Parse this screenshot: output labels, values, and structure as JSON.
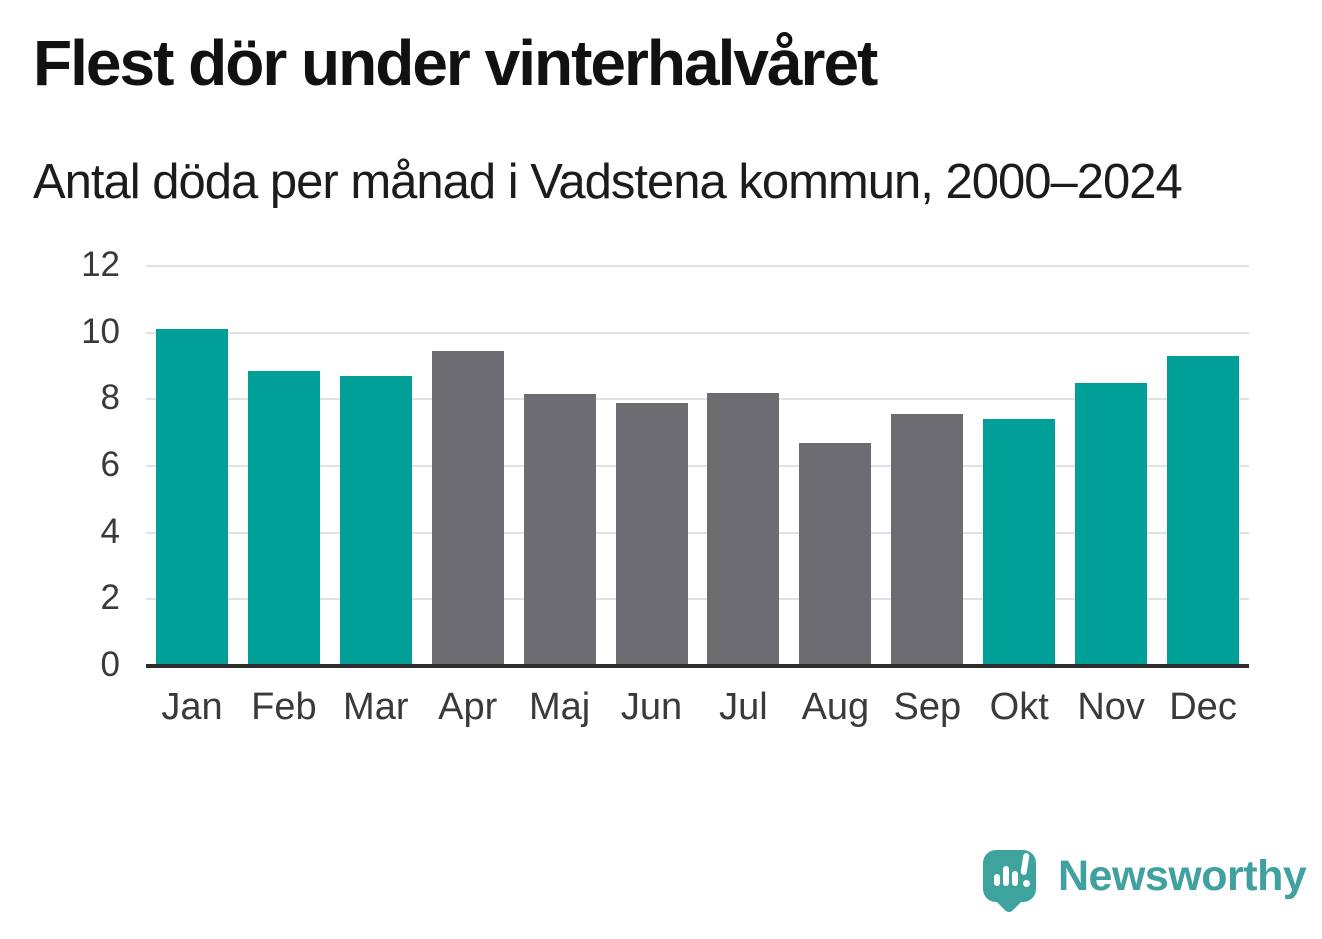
{
  "chart_data": {
    "type": "bar",
    "title": "Flest dör under vinterhalvåret",
    "subtitle": "Antal döda per månad i Vadstena kommun, 2000–2024",
    "categories": [
      "Jan",
      "Feb",
      "Mar",
      "Apr",
      "Maj",
      "Jun",
      "Jul",
      "Aug",
      "Sep",
      "Okt",
      "Nov",
      "Dec"
    ],
    "values": [
      10.1,
      8.85,
      8.7,
      9.45,
      8.15,
      7.9,
      8.2,
      6.7,
      7.55,
      7.4,
      8.5,
      9.3
    ],
    "bar_color_keys": [
      "winter",
      "winter",
      "winter",
      "summer",
      "summer",
      "summer",
      "summer",
      "summer",
      "summer",
      "winter",
      "winter",
      "winter"
    ],
    "colors": {
      "winter": "#00a099",
      "summer": "#6c6c71"
    },
    "xlabel": "",
    "ylabel": "",
    "ylim": [
      0,
      12
    ],
    "yticks": [
      0,
      2,
      4,
      6,
      8,
      10,
      12
    ],
    "grid": true,
    "legend": "none",
    "gridline_color": "#e2e2e2",
    "axis_color": "#2d2d2d"
  },
  "footer": {
    "brand": "Newsworthy",
    "brand_color": "#41a0a0",
    "logo_icon": "speech-bubble-bar-chart-icon",
    "logo_color": "#3fa39d"
  }
}
